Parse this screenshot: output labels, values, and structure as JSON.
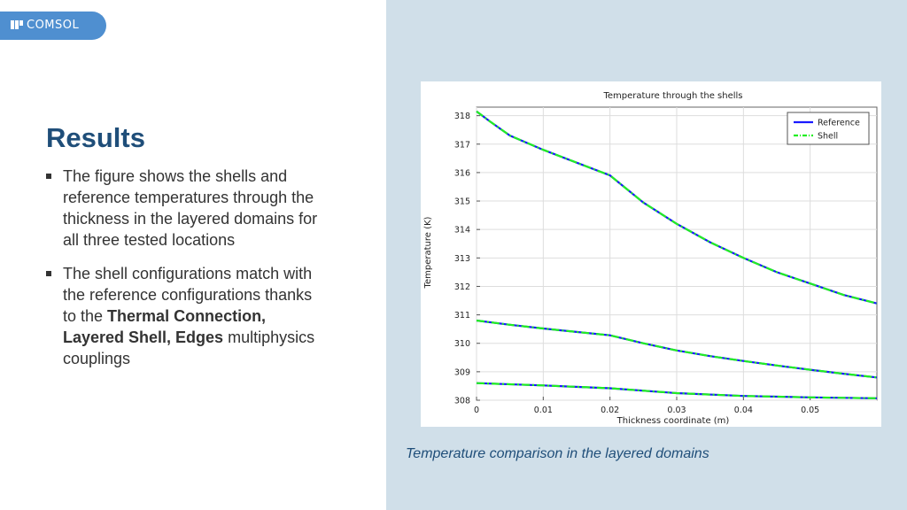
{
  "logo": {
    "text": "COMSOL",
    "color": "#4f8fd0"
  },
  "title": "Results",
  "bullets": [
    {
      "text": "The figure shows the shells and reference temperatures through the thickness in the layered domains for all three tested locations"
    },
    {
      "text_before": "The shell configurations match with the reference configurations thanks to the ",
      "text_bold": "Thermal Connection, Layered Shell, Edges",
      "text_after": " multiphysics couplings"
    }
  ],
  "caption": "Temperature comparison in the layered domains",
  "chart_data": {
    "type": "line",
    "title": "Temperature through the shells",
    "xlabel": "Thickness coordinate (m)",
    "ylabel": "Temperature (K)",
    "xlim": [
      0,
      0.06
    ],
    "ylim": [
      308,
      318.3
    ],
    "x_ticks": [
      "0",
      "0.01",
      "0.02",
      "0.03",
      "0.04",
      "0.05"
    ],
    "y_ticks": [
      "308",
      "309",
      "310",
      "311",
      "312",
      "313",
      "314",
      "315",
      "316",
      "317",
      "318"
    ],
    "grid": true,
    "legend_position": "top-right",
    "legend": [
      {
        "name": "Reference",
        "color": "#1a1aff",
        "style": "solid"
      },
      {
        "name": "Shell",
        "color": "#22ee22",
        "style": "dash-dot"
      }
    ],
    "curves": [
      {
        "location": 1,
        "x": [
          0,
          0.002,
          0.005,
          0.01,
          0.015,
          0.02,
          0.025,
          0.03,
          0.035,
          0.04,
          0.045,
          0.05,
          0.055,
          0.06
        ],
        "y": [
          318.15,
          317.8,
          317.3,
          316.8,
          316.35,
          315.9,
          314.95,
          314.2,
          313.55,
          313.0,
          312.5,
          312.1,
          311.7,
          311.4
        ]
      },
      {
        "location": 2,
        "x": [
          0,
          0.005,
          0.01,
          0.015,
          0.02,
          0.025,
          0.03,
          0.035,
          0.04,
          0.045,
          0.05,
          0.055,
          0.06
        ],
        "y": [
          310.8,
          310.65,
          310.52,
          310.4,
          310.28,
          310.0,
          309.75,
          309.55,
          309.38,
          309.22,
          309.07,
          308.93,
          308.8
        ]
      },
      {
        "location": 3,
        "x": [
          0,
          0.01,
          0.02,
          0.03,
          0.04,
          0.05,
          0.06
        ],
        "y": [
          308.6,
          308.52,
          308.42,
          308.25,
          308.15,
          308.1,
          308.07
        ]
      }
    ]
  }
}
